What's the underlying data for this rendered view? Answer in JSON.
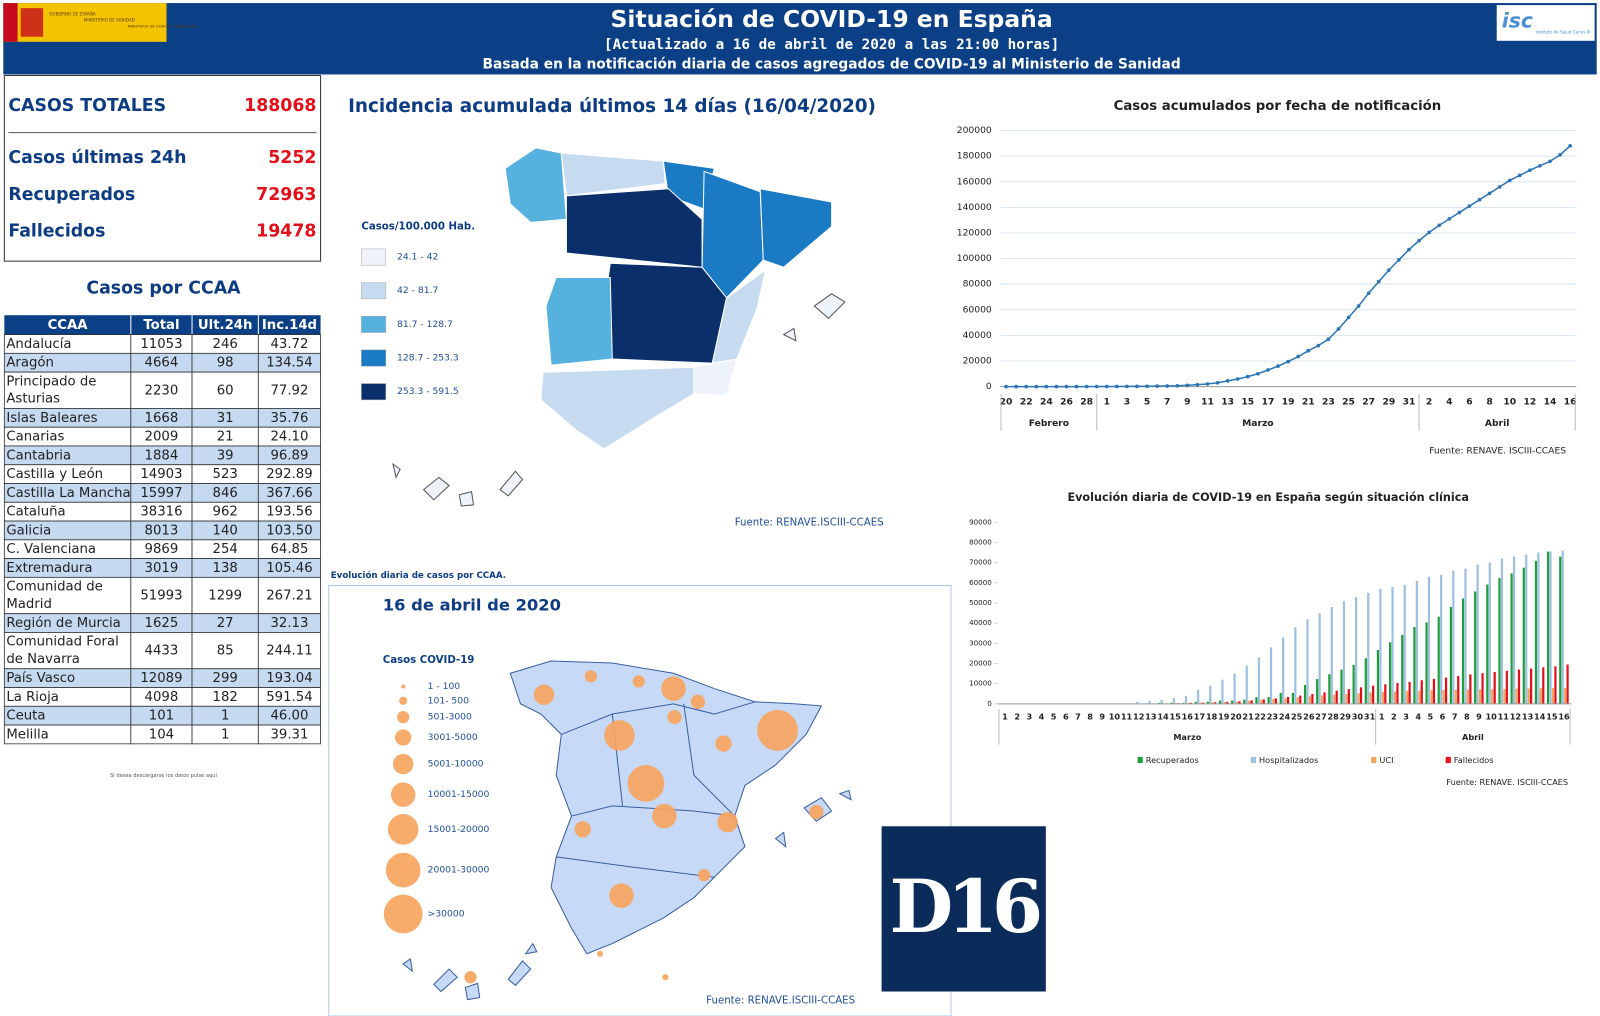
{
  "header": {
    "title": "Situación de COVID-19 en España",
    "subtitle": "[Actualizado a 16 de abril de 2020 a las 21:00 horas]",
    "subtitle2": "Basada en la notificación diaria de casos agregados de COVID-19 al Ministerio de Sanidad",
    "gov_logo": [
      "GOBIERNO DE ESPAÑA",
      "MINISTERIO DE SANIDAD",
      "MINISTERIO DE CIENCIA E INNOVACIÓN"
    ],
    "isc_logo": [
      "isc",
      "Instituto de Salud Carlos III"
    ]
  },
  "summary": [
    {
      "label": "CASOS TOTALES",
      "value": 188068
    },
    {
      "label": "Casos últimas 24h",
      "value": 5252
    },
    {
      "label": "Recuperados",
      "value": 72963
    },
    {
      "label": "Fallecidos",
      "value": 19478
    }
  ],
  "table": {
    "title": "Casos por CCAA",
    "headers": [
      "CCAA",
      "Total",
      "Ult.24h",
      "Inc.14d"
    ],
    "rows": [
      [
        "Andalucía",
        "11053",
        "246",
        "43.72"
      ],
      [
        "Aragón",
        "4664",
        "98",
        "134.54"
      ],
      [
        "Principado de Asturias",
        "2230",
        "60",
        "77.92"
      ],
      [
        "Islas Baleares",
        "1668",
        "31",
        "35.76"
      ],
      [
        "Canarias",
        "2009",
        "21",
        "24.10"
      ],
      [
        "Cantabria",
        "1884",
        "39",
        "96.89"
      ],
      [
        "Castilla y León",
        "14903",
        "523",
        "292.89"
      ],
      [
        "Castilla La Mancha",
        "15997",
        "846",
        "367.66"
      ],
      [
        "Cataluña",
        "38316",
        "962",
        "193.56"
      ],
      [
        "Galicia",
        "8013",
        "140",
        "103.50"
      ],
      [
        "C. Valenciana",
        "9869",
        "254",
        "64.85"
      ],
      [
        "Extremadura",
        "3019",
        "138",
        "105.46"
      ],
      [
        "Comunidad de Madrid",
        "51993",
        "1299",
        "267.21"
      ],
      [
        "Región de Murcia",
        "1625",
        "27",
        "32.13"
      ],
      [
        "Comunidad Foral de Navarra",
        "4433",
        "85",
        "244.11"
      ],
      [
        "País Vasco",
        "12089",
        "299",
        "193.04"
      ],
      [
        "La Rioja",
        "4098",
        "182",
        "591.54"
      ],
      [
        "Ceuta",
        "101",
        "1",
        "46.00"
      ],
      [
        "Melilla",
        "104",
        "1",
        "39.31"
      ]
    ],
    "footnote": "Si desea descargarse los datos pulse aquí"
  },
  "map_incidence": {
    "title": "Incidencia acumulada últimos 14 días (16/04/2020)",
    "legend_title": "Casos/100.000 Hab.",
    "legend": [
      {
        "label": "24.1 - 42",
        "color": "#eef3fb"
      },
      {
        "label": "42 - 81.7",
        "color": "#c6dbef"
      },
      {
        "label": "81.7 - 128.7",
        "color": "#56b1de"
      },
      {
        "label": "128.7 - 253.3",
        "color": "#1a7bc4"
      },
      {
        "label": "253.3 - 591.5",
        "color": "#0b2f6b"
      }
    ],
    "source": "Fuente: RENAVE.ISCIII-CCAES"
  },
  "map_cases": {
    "caption": "Evolución diaria de casos por CCAA.",
    "title": "16 de abril de 2020",
    "legend_title": "Casos COVID-19",
    "legend": [
      "1 - 100",
      "101- 500",
      "501-3000",
      "3001-5000",
      "5001-10000",
      "10001-15000",
      "15001-20000",
      "20001-30000",
      ">30000"
    ],
    "color": "#f7a35c",
    "source": "Fuente: RENAVE.ISCIII-CCAES"
  },
  "logo": {
    "text": "D16"
  },
  "chart_data": [
    {
      "type": "line",
      "title": "Casos acumulados por fecha de notificación",
      "color": "#2e75b6",
      "grid": true,
      "categories": [
        "20",
        null,
        "22",
        null,
        "24",
        null,
        "26",
        null,
        "28",
        null,
        "1",
        null,
        "3",
        null,
        "5",
        null,
        "7",
        null,
        "9",
        null,
        "11",
        null,
        "13",
        null,
        "15",
        null,
        "17",
        null,
        "19",
        null,
        "21",
        null,
        "23",
        null,
        "25",
        null,
        "27",
        null,
        "29",
        null,
        "31",
        null,
        "2",
        null,
        "4",
        null,
        "6",
        null,
        "8",
        null,
        "10",
        null,
        "12",
        null,
        "14",
        null,
        "16"
      ],
      "x_groups": [
        "Febrero",
        "Marzo",
        "Abril"
      ],
      "values": [
        3,
        3,
        3,
        3,
        3,
        3,
        4,
        12,
        25,
        45,
        84,
        110,
        150,
        200,
        260,
        370,
        480,
        650,
        1000,
        1500,
        2100,
        3000,
        4500,
        6000,
        7800,
        10000,
        13000,
        16000,
        19500,
        23500,
        28000,
        32000,
        37000,
        45000,
        54000,
        63000,
        73000,
        82000,
        91000,
        99000,
        107000,
        114000,
        120500,
        126000,
        131000,
        136000,
        141000,
        146000,
        151000,
        156000,
        161000,
        165000,
        169000,
        172500,
        176000,
        181000,
        188068
      ],
      "ylim": [
        0,
        200000
      ],
      "yticks": [
        0,
        20000,
        40000,
        60000,
        80000,
        100000,
        120000,
        140000,
        160000,
        180000,
        200000
      ],
      "source": "Fuente: RENAVE. ISCIII-CCAES"
    },
    {
      "type": "bar",
      "title": "Evolución diaria de COVID-19 en España según situación clínica",
      "grid": false,
      "categories": [
        "1",
        "2",
        "3",
        "4",
        "5",
        "6",
        "7",
        "8",
        "9",
        "10",
        "11",
        "12",
        "13",
        "14",
        "15",
        "16",
        "17",
        "18",
        "19",
        "20",
        "21",
        "22",
        "23",
        "24",
        "25",
        "26",
        "27",
        "28",
        "29",
        "30",
        "31",
        "1",
        "2",
        "3",
        "4",
        "5",
        "6",
        "7",
        "8",
        "9",
        "10",
        "11",
        "12",
        "13",
        "14",
        "15",
        "16"
      ],
      "x_groups": [
        "Marzo",
        "Abril"
      ],
      "series": [
        {
          "name": "Recuperados",
          "color": "#1e9e3a",
          "values": [
            0,
            0,
            0,
            0,
            0,
            0,
            0,
            0,
            0,
            0,
            0,
            200,
            200,
            500,
            500,
            500,
            1000,
            1100,
            1600,
            1600,
            2100,
            3300,
            3400,
            5400,
            5400,
            9400,
            12300,
            14700,
            17000,
            19300,
            22600,
            26700,
            30500,
            34200,
            38100,
            40400,
            43200,
            48000,
            52200,
            55700,
            59100,
            62400,
            64700,
            67500,
            70900,
            75500,
            72963
          ]
        },
        {
          "name": "Hospitalizados",
          "color": "#9dbfe0",
          "values": [
            0,
            0,
            0,
            0,
            0,
            0,
            0,
            0,
            0,
            0,
            0,
            1000,
            1500,
            2000,
            3000,
            4000,
            7000,
            9000,
            12000,
            15000,
            19000,
            23000,
            28000,
            33000,
            38000,
            42000,
            45000,
            48000,
            51000,
            53000,
            55000,
            57000,
            58000,
            59000,
            61000,
            63000,
            64000,
            66000,
            67000,
            69000,
            70000,
            72000,
            73000,
            74000,
            75000,
            75500,
            76000
          ]
        },
        {
          "name": "UCI",
          "color": "#f7a35c",
          "values": [
            0,
            0,
            0,
            0,
            0,
            0,
            0,
            0,
            0,
            0,
            0,
            100,
            200,
            300,
            400,
            500,
            600,
            800,
            900,
            1100,
            1600,
            2000,
            2500,
            2800,
            3200,
            3700,
            4200,
            4600,
            4900,
            5200,
            5600,
            5900,
            6100,
            6400,
            6500,
            6800,
            6900,
            7000,
            7100,
            7200,
            7300,
            7400,
            7500,
            7600,
            7700,
            7800,
            7900
          ]
        },
        {
          "name": "Fallecidos",
          "color": "#e3101b",
          "values": [
            0,
            0,
            0,
            0,
            0,
            0,
            0,
            0,
            0,
            0,
            0,
            50,
            100,
            200,
            300,
            500,
            600,
            800,
            1000,
            1300,
            1700,
            2200,
            2700,
            3400,
            4100,
            4900,
            5700,
            6500,
            7300,
            8200,
            9000,
            9700,
            10300,
            10900,
            11700,
            12400,
            13000,
            13800,
            14600,
            15200,
            15800,
            16400,
            17000,
            17500,
            18100,
            18600,
            19478
          ]
        }
      ],
      "ylim": [
        0,
        90000
      ],
      "yticks": [
        0,
        10000,
        20000,
        30000,
        40000,
        50000,
        60000,
        70000,
        80000,
        90000
      ],
      "source": "Fuente: RENAVE. ISCIII-CCAES"
    }
  ]
}
